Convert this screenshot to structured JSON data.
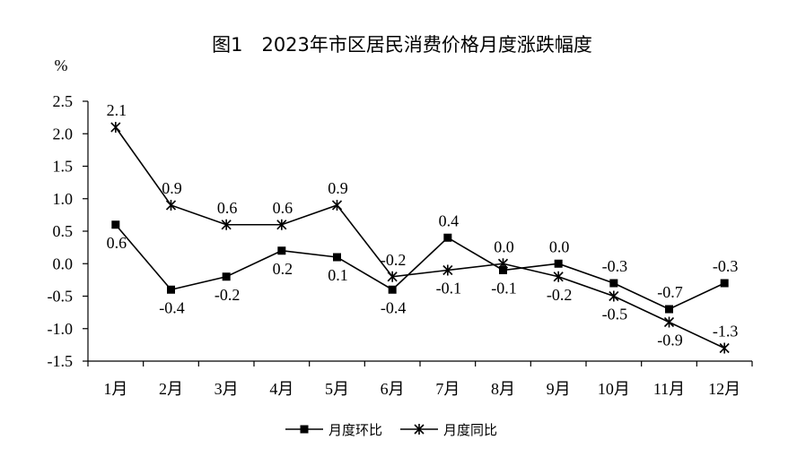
{
  "chart_data": {
    "type": "line",
    "title": "图1　2023年市区居民消费价格月度涨跌幅度",
    "ylabel": "%",
    "xlabel": "",
    "categories": [
      "1月",
      "2月",
      "3月",
      "4月",
      "5月",
      "6月",
      "7月",
      "8月",
      "9月",
      "10月",
      "11月",
      "12月"
    ],
    "ylim": [
      -1.5,
      2.5
    ],
    "yticks": [
      "2.5",
      "2.0",
      "1.5",
      "1.0",
      "0.5",
      "0.0",
      "-0.5",
      "-1.0",
      "-1.5"
    ],
    "legend_position": "bottom",
    "grid": false,
    "series": [
      {
        "name": "月度环比",
        "marker": "square",
        "values": [
          0.6,
          -0.4,
          -0.2,
          0.2,
          0.1,
          -0.4,
          0.4,
          -0.1,
          0.0,
          -0.3,
          -0.7,
          -0.3
        ],
        "labels": [
          "0.6",
          "-0.4",
          "-0.2",
          "0.2",
          "0.1",
          "-0.4",
          "0.4",
          "-0.1",
          "0.0",
          "-0.3",
          "-0.7",
          "-0.3"
        ]
      },
      {
        "name": "月度同比",
        "marker": "star",
        "values": [
          2.1,
          0.9,
          0.6,
          0.6,
          0.9,
          -0.2,
          -0.1,
          0.0,
          -0.2,
          -0.5,
          -0.9,
          -1.3
        ],
        "labels": [
          "2.1",
          "0.9",
          "0.6",
          "0.6",
          "0.9",
          "-0.2",
          "-0.1",
          "0.0",
          "-0.2",
          "-0.5",
          "-0.9",
          "-1.3"
        ]
      }
    ]
  }
}
